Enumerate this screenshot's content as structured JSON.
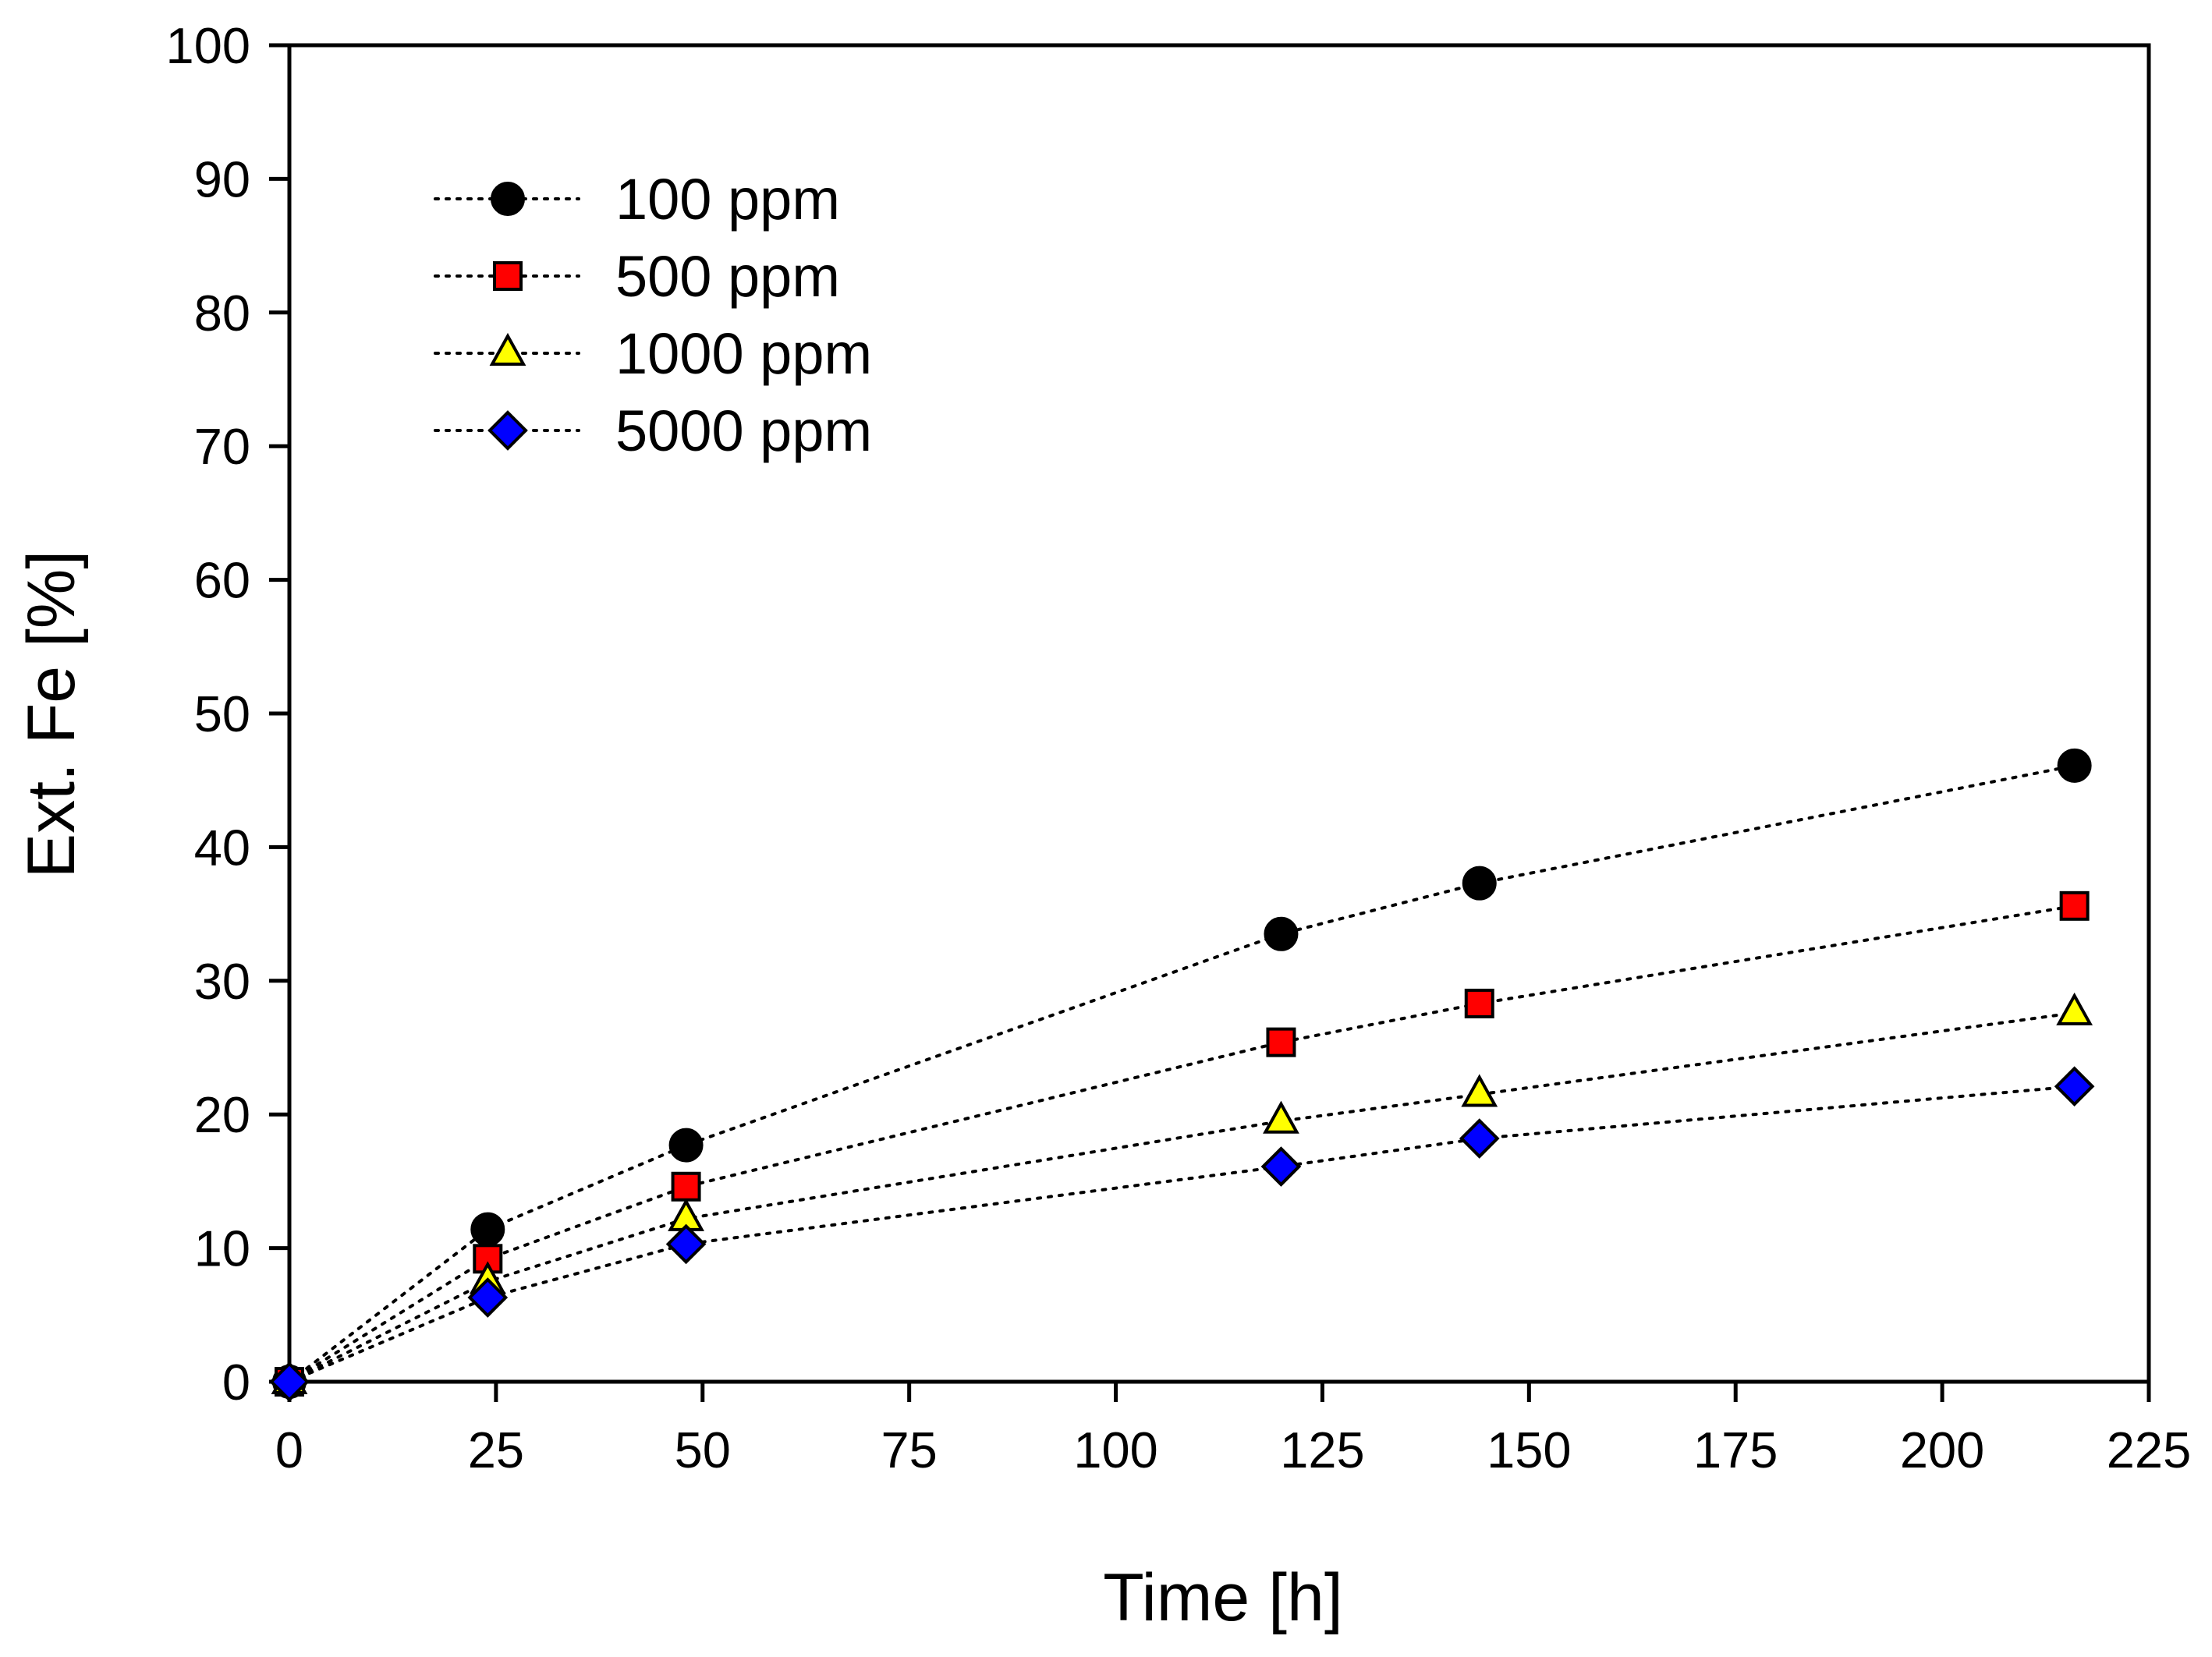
{
  "chart_data": {
    "type": "scatter",
    "title": "",
    "xlabel": "Time [h]",
    "ylabel": "Ext. Fe [%]",
    "xlim": [
      0,
      225
    ],
    "ylim": [
      0,
      100
    ],
    "xticks": [
      "0",
      "25",
      "50",
      "75",
      "100",
      "125",
      "150",
      "175",
      "200",
      "225"
    ],
    "yticks": [
      "0",
      "10",
      "20",
      "30",
      "40",
      "50",
      "60",
      "70",
      "80",
      "90",
      "100"
    ],
    "grid": false,
    "legend_position": "top-left",
    "line_style": "dotted",
    "x": [
      0,
      24,
      48,
      120,
      144,
      216
    ],
    "series": [
      {
        "name": "100 ppm",
        "marker": "circle",
        "color": "#000000",
        "values": [
          0,
          11.4,
          17.7,
          33.5,
          37.3,
          46.1
        ]
      },
      {
        "name": "500 ppm",
        "marker": "square",
        "color": "#ff0000",
        "values": [
          0,
          9.2,
          14.6,
          25.4,
          28.3,
          35.6
        ]
      },
      {
        "name": "1000 ppm",
        "marker": "triangle",
        "color": "#ffff00",
        "values": [
          0,
          7.5,
          12.2,
          19.5,
          21.5,
          27.6
        ]
      },
      {
        "name": "5000 ppm",
        "marker": "diamond",
        "color": "#0000ff",
        "values": [
          0,
          6.3,
          10.3,
          16.1,
          18.2,
          22.1
        ]
      }
    ]
  }
}
